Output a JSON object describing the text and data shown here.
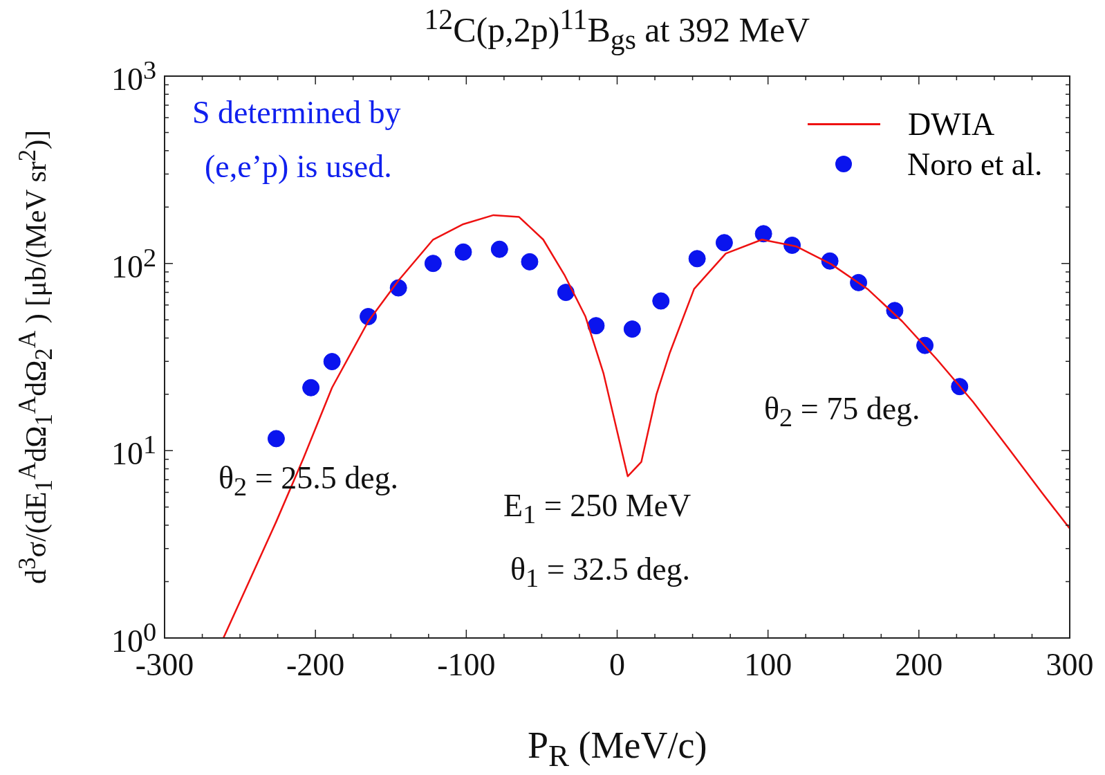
{
  "chart_data": {
    "type": "scatter",
    "title": "$^{12}$C(p,2p)$^{11}$B$_{gs}$ at 392 MeV",
    "xlabel": "P$_{R}$ (MeV/c)",
    "ylabel": "d$^{3}$σ/(dE$_{1}$$^{A}$dΩ$_{1}$$^{A}$dΩ$_{2}$$^{A}$ ) [μb/(MeV sr$^{2}$)]",
    "log": "y",
    "grid": false,
    "legend": "top right",
    "marker": "circle",
    "xlim": [
      -300,
      300
    ],
    "xticks": [
      -300,
      -200,
      -100,
      0,
      100,
      200,
      300
    ],
    "ylim": [
      1,
      1000
    ],
    "yticks": [
      {
        "value": 1,
        "label": "10$^{0}$"
      },
      {
        "value": 10,
        "label": "10$^{1}$"
      },
      {
        "value": 100,
        "label": "10$^{2}$"
      },
      {
        "value": 1000,
        "label": "10$^{3}$"
      }
    ],
    "annotations": [
      "S determined by",
      "(e,e’p) is used.",
      "θ$_{2}$ = 25.5 deg.",
      "E$_{1}$ = 250 MeV",
      "θ$_{1}$ = 32.5 deg.",
      "θ$_{2}$ = 75 deg."
    ],
    "series": [
      {
        "name": "DWIA",
        "type": "line",
        "color": "#ee1111",
        "line_style": "solid",
        "marker": "none",
        "x": [
          -261,
          -245,
          -226,
          -208,
          -189,
          -165,
          -145,
          -122,
          -102,
          -82,
          -65,
          -49,
          -35,
          -21,
          -9,
          7,
          16,
          26,
          35,
          51,
          72,
          96,
          119,
          142,
          166,
          189,
          212,
          236,
          259,
          282,
          300
        ],
        "values": [
          1.0,
          1.92,
          4.18,
          9.1,
          21.7,
          49,
          81,
          134,
          162,
          181,
          177,
          134,
          87,
          52,
          25.8,
          7.3,
          8.7,
          19.9,
          33.5,
          73,
          113,
          134,
          123,
          99,
          73,
          49,
          30.7,
          18.2,
          10.4,
          5.9,
          3.84
        ]
      },
      {
        "name": "Noro et al.",
        "color": "#0a14ee",
        "x": [
          -226,
          -203,
          -189,
          -165,
          -145,
          -122,
          -102,
          -78,
          -58,
          -34,
          -14,
          10,
          29,
          53,
          71,
          97,
          116,
          141,
          160,
          184,
          204,
          227
        ],
        "values": [
          11.6,
          21.7,
          29.9,
          52,
          74,
          100,
          115,
          119,
          102,
          70,
          46.5,
          44.6,
          63,
          106,
          129,
          144,
          125,
          103,
          79,
          56,
          36.5,
          22
        ]
      }
    ]
  }
}
